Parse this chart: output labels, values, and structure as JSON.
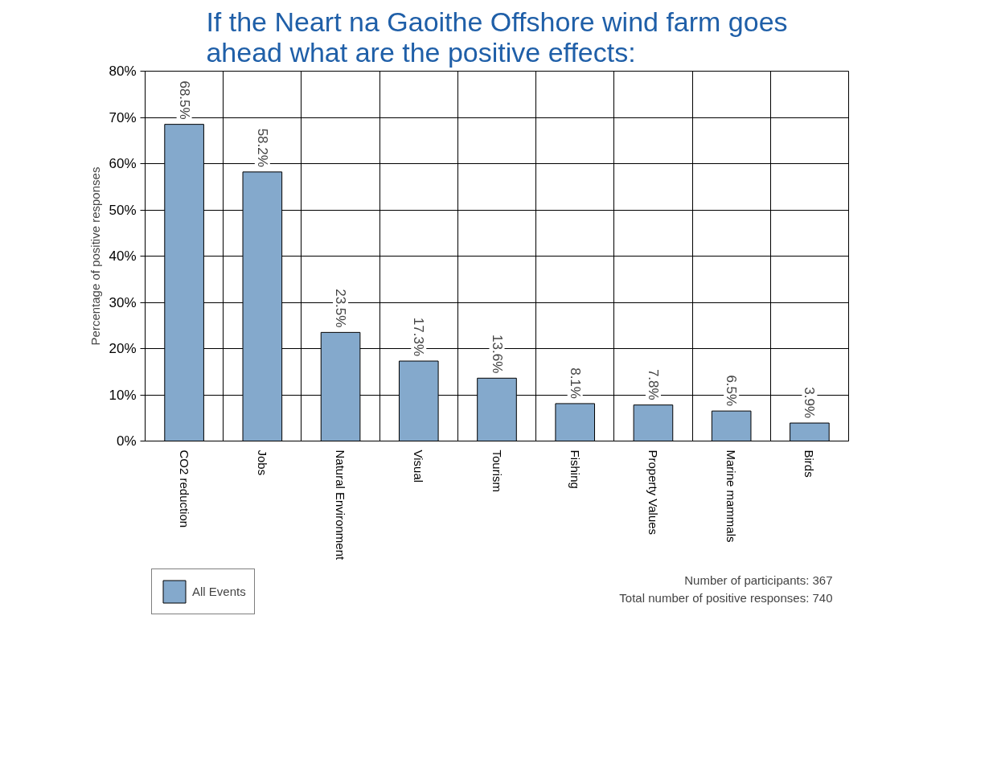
{
  "chart_data": {
    "type": "bar",
    "title": "If the Neart na Gaoithe Offshore wind farm goes ahead what are the positive effects:",
    "ylabel": "Percentage of positive responses",
    "categories": [
      "CO2 reduction",
      "Jobs",
      "Natural Environment",
      "Visual",
      "Tourism",
      "Fishing",
      "Property Values",
      "Marine mammals",
      "Birds"
    ],
    "series": [
      {
        "name": "All Events",
        "color": "#84a9cc",
        "values": [
          68.5,
          58.2,
          23.5,
          17.3,
          13.6,
          8.1,
          7.8,
          6.5,
          3.9
        ],
        "value_labels": [
          "68.5%",
          "58.2%",
          "23.5%",
          "17.3%",
          "13.6%",
          "8.1%",
          "7.8%",
          "6.5%",
          "3.9%"
        ]
      }
    ],
    "ylim": [
      0,
      80
    ],
    "yticks": [
      {
        "value": 0,
        "label": "0%"
      },
      {
        "value": 10,
        "label": "10%"
      },
      {
        "value": 20,
        "label": "20%"
      },
      {
        "value": 30,
        "label": "30%"
      },
      {
        "value": 40,
        "label": "40%"
      },
      {
        "value": 50,
        "label": "50%"
      },
      {
        "value": 60,
        "label": "60%"
      },
      {
        "value": 70,
        "label": "70%"
      },
      {
        "value": 80,
        "label": "80%"
      }
    ],
    "grid": true,
    "legend": "bottom left",
    "annotations": [
      "Number of participants: 367",
      "Total number of positive responses: 740"
    ]
  }
}
